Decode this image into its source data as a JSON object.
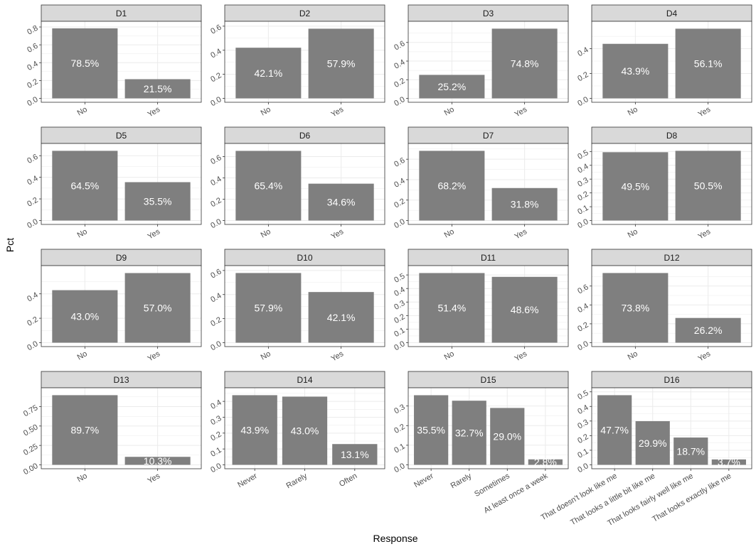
{
  "axis_labels": {
    "x": "Response",
    "y": "Pct"
  },
  "colors": {
    "bar": "#7f7f7f",
    "strip": "#d9d9d9",
    "grid": "#ebebeb",
    "border": "#333333",
    "axis_text": "#4d4d4d",
    "bar_label": "#ffffff"
  },
  "chart_data": [
    {
      "type": "bar",
      "title": "D1",
      "categories": [
        "No",
        "Yes"
      ],
      "values": [
        0.785,
        0.215
      ],
      "labels": [
        "78.5%",
        "21.5%"
      ],
      "ylim": [
        0,
        0.82
      ],
      "yticks": [
        "0.0",
        "0.2",
        "0.4",
        "0.6",
        "0.8"
      ],
      "ytick_values": [
        0,
        0.2,
        0.4,
        0.6,
        0.8
      ]
    },
    {
      "type": "bar",
      "title": "D2",
      "categories": [
        "No",
        "Yes"
      ],
      "values": [
        0.421,
        0.579
      ],
      "labels": [
        "42.1%",
        "57.9%"
      ],
      "ylim": [
        0,
        0.608
      ],
      "yticks": [
        "0.0",
        "0.2",
        "0.4",
        "0.6"
      ],
      "ytick_values": [
        0,
        0.2,
        0.4,
        0.6
      ]
    },
    {
      "type": "bar",
      "title": "D3",
      "categories": [
        "No",
        "Yes"
      ],
      "values": [
        0.252,
        0.748
      ],
      "labels": [
        "25.2%",
        "74.8%"
      ],
      "ylim": [
        0,
        0.785
      ],
      "yticks": [
        "0.0",
        "0.2",
        "0.4",
        "0.6"
      ],
      "ytick_values": [
        0,
        0.2,
        0.4,
        0.6
      ]
    },
    {
      "type": "bar",
      "title": "D4",
      "categories": [
        "No",
        "Yes"
      ],
      "values": [
        0.439,
        0.561
      ],
      "labels": [
        "43.9%",
        "56.1%"
      ],
      "ylim": [
        0,
        0.589
      ],
      "yticks": [
        "0.0",
        "0.2",
        "0.4"
      ],
      "ytick_values": [
        0,
        0.2,
        0.4
      ]
    },
    {
      "type": "bar",
      "title": "D5",
      "categories": [
        "No",
        "Yes"
      ],
      "values": [
        0.645,
        0.355
      ],
      "labels": [
        "64.5%",
        "35.5%"
      ],
      "ylim": [
        0,
        0.677
      ],
      "yticks": [
        "0.0",
        "0.2",
        "0.4",
        "0.6"
      ],
      "ytick_values": [
        0,
        0.2,
        0.4,
        0.6
      ]
    },
    {
      "type": "bar",
      "title": "D6",
      "categories": [
        "No",
        "Yes"
      ],
      "values": [
        0.654,
        0.346
      ],
      "labels": [
        "65.4%",
        "34.6%"
      ],
      "ylim": [
        0,
        0.687
      ],
      "yticks": [
        "0.0",
        "0.2",
        "0.4",
        "0.6"
      ],
      "ytick_values": [
        0,
        0.2,
        0.4,
        0.6
      ]
    },
    {
      "type": "bar",
      "title": "D7",
      "categories": [
        "No",
        "Yes"
      ],
      "values": [
        0.682,
        0.318
      ],
      "labels": [
        "68.2%",
        "31.8%"
      ],
      "ylim": [
        0,
        0.716
      ],
      "yticks": [
        "0.0",
        "0.2",
        "0.4",
        "0.6"
      ],
      "ytick_values": [
        0,
        0.2,
        0.4,
        0.6
      ]
    },
    {
      "type": "bar",
      "title": "D8",
      "categories": [
        "No",
        "Yes"
      ],
      "values": [
        0.495,
        0.505
      ],
      "labels": [
        "49.5%",
        "50.5%"
      ],
      "ylim": [
        0,
        0.53
      ],
      "yticks": [
        "0.0",
        "0.1",
        "0.2",
        "0.3",
        "0.4",
        "0.5"
      ],
      "ytick_values": [
        0,
        0.1,
        0.2,
        0.3,
        0.4,
        0.5
      ]
    },
    {
      "type": "bar",
      "title": "D9",
      "categories": [
        "No",
        "Yes"
      ],
      "values": [
        0.43,
        0.57
      ],
      "labels": [
        "43.0%",
        "57.0%"
      ],
      "ylim": [
        0,
        0.599
      ],
      "yticks": [
        "0.0",
        "0.2",
        "0.4"
      ],
      "ytick_values": [
        0,
        0.2,
        0.4
      ]
    },
    {
      "type": "bar",
      "title": "D10",
      "categories": [
        "No",
        "Yes"
      ],
      "values": [
        0.579,
        0.421
      ],
      "labels": [
        "57.9%",
        "42.1%"
      ],
      "ylim": [
        0,
        0.608
      ],
      "yticks": [
        "0.0",
        "0.2",
        "0.4",
        "0.6"
      ],
      "ytick_values": [
        0,
        0.2,
        0.4,
        0.6
      ]
    },
    {
      "type": "bar",
      "title": "D11",
      "categories": [
        "No",
        "Yes"
      ],
      "values": [
        0.514,
        0.486
      ],
      "labels": [
        "51.4%",
        "48.6%"
      ],
      "ylim": [
        0,
        0.54
      ],
      "yticks": [
        "0.0",
        "0.1",
        "0.2",
        "0.3",
        "0.4",
        "0.5"
      ],
      "ytick_values": [
        0,
        0.1,
        0.2,
        0.3,
        0.4,
        0.5
      ]
    },
    {
      "type": "bar",
      "title": "D12",
      "categories": [
        "No",
        "Yes"
      ],
      "values": [
        0.738,
        0.262
      ],
      "labels": [
        "73.8%",
        "26.2%"
      ],
      "ylim": [
        0,
        0.775
      ],
      "yticks": [
        "0.0",
        "0.2",
        "0.4",
        "0.6"
      ],
      "ytick_values": [
        0,
        0.2,
        0.4,
        0.6
      ]
    },
    {
      "type": "bar",
      "title": "D13",
      "categories": [
        "No",
        "Yes"
      ],
      "values": [
        0.897,
        0.103
      ],
      "labels": [
        "89.7%",
        "10.3%"
      ],
      "ylim": [
        0,
        0.942
      ],
      "yticks": [
        "0.00",
        "0.25",
        "0.50",
        "0.75"
      ],
      "ytick_values": [
        0,
        0.25,
        0.5,
        0.75
      ]
    },
    {
      "type": "bar",
      "title": "D14",
      "categories": [
        "Never",
        "Rarely",
        "Often"
      ],
      "values": [
        0.439,
        0.43,
        0.131
      ],
      "labels": [
        "43.9%",
        "43.0%",
        "13.1%"
      ],
      "ylim": [
        0,
        0.461
      ],
      "yticks": [
        "0.0",
        "0.1",
        "0.2",
        "0.3",
        "0.4"
      ],
      "ytick_values": [
        0,
        0.1,
        0.2,
        0.3,
        0.4
      ]
    },
    {
      "type": "bar",
      "title": "D15",
      "categories": [
        "Never",
        "Rarely",
        "Sometimes",
        "At least once a week"
      ],
      "values": [
        0.355,
        0.327,
        0.29,
        0.028
      ],
      "labels": [
        "35.5%",
        "32.7%",
        "29.0%",
        "2.8%"
      ],
      "ylim": [
        0,
        0.373
      ],
      "yticks": [
        "0.0",
        "0.1",
        "0.2",
        "0.3"
      ],
      "ytick_values": [
        0,
        0.1,
        0.2,
        0.3
      ]
    },
    {
      "type": "bar",
      "title": "D16",
      "categories": [
        "That doesn't look like me",
        "That looks a little bit like me",
        "That looks fairly well like me",
        "That looks exactly like me"
      ],
      "values": [
        0.477,
        0.299,
        0.187,
        0.037
      ],
      "labels": [
        "47.7%",
        "29.9%",
        "18.7%",
        "3.7%"
      ],
      "ylim": [
        0,
        0.501
      ],
      "yticks": [
        "0.0",
        "0.1",
        "0.2",
        "0.3",
        "0.4",
        "0.5"
      ],
      "ytick_values": [
        0,
        0.1,
        0.2,
        0.3,
        0.4,
        0.5
      ]
    }
  ]
}
